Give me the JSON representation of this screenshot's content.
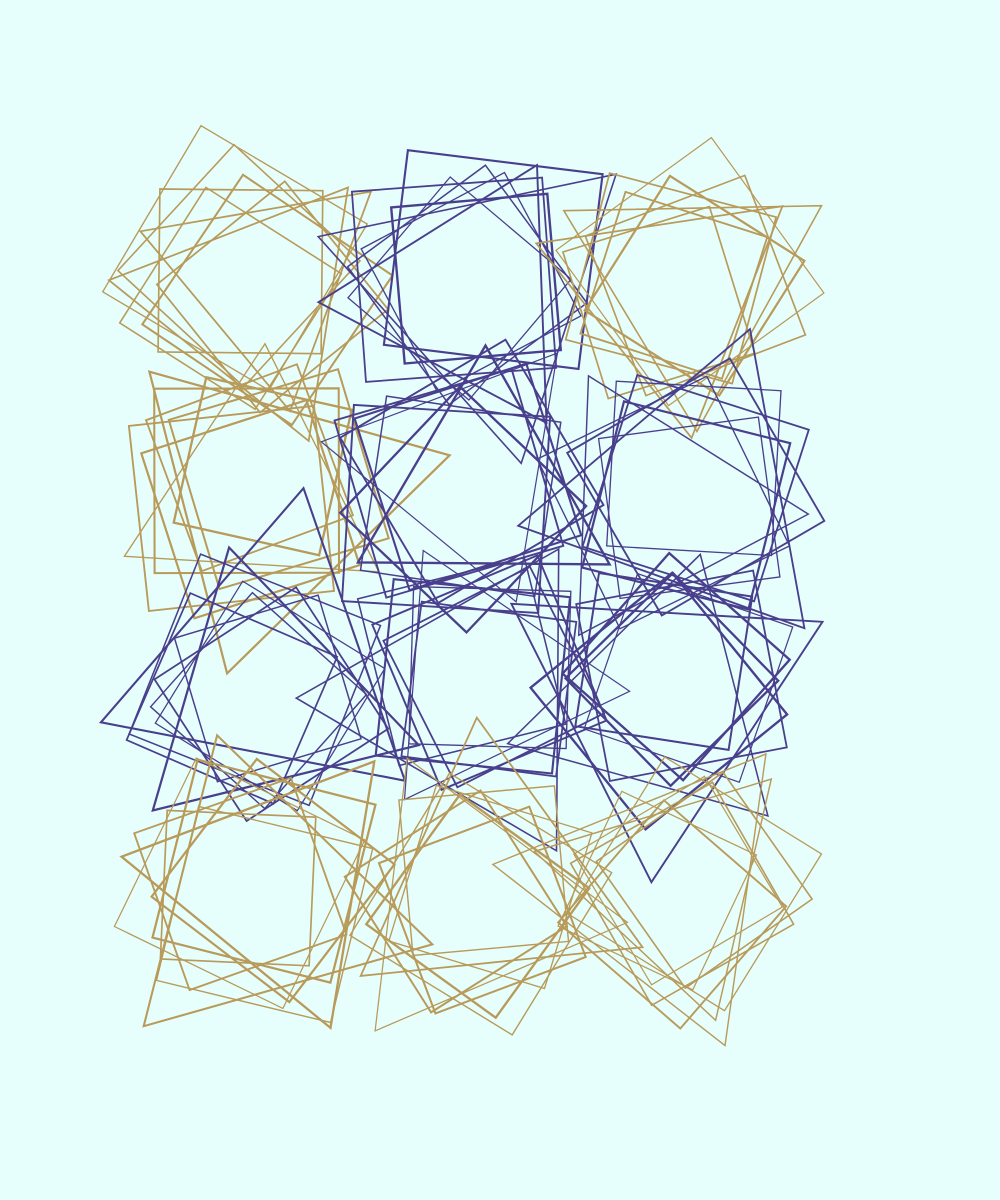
{
  "colors": {
    "background": "#e6fffc",
    "gold": "#b89a5a",
    "indigo": "#4a3f8c"
  },
  "grid": {
    "columns": 3,
    "rows": 4,
    "cell_colors": [
      [
        "gold",
        "indigo",
        "gold"
      ],
      [
        "gold",
        "indigo",
        "indigo"
      ],
      [
        "indigo",
        "indigo",
        "indigo"
      ],
      [
        "gold",
        "gold",
        "gold"
      ]
    ]
  },
  "shapes_per_cell": 8,
  "shape_kinds": [
    "square",
    "triangle"
  ]
}
